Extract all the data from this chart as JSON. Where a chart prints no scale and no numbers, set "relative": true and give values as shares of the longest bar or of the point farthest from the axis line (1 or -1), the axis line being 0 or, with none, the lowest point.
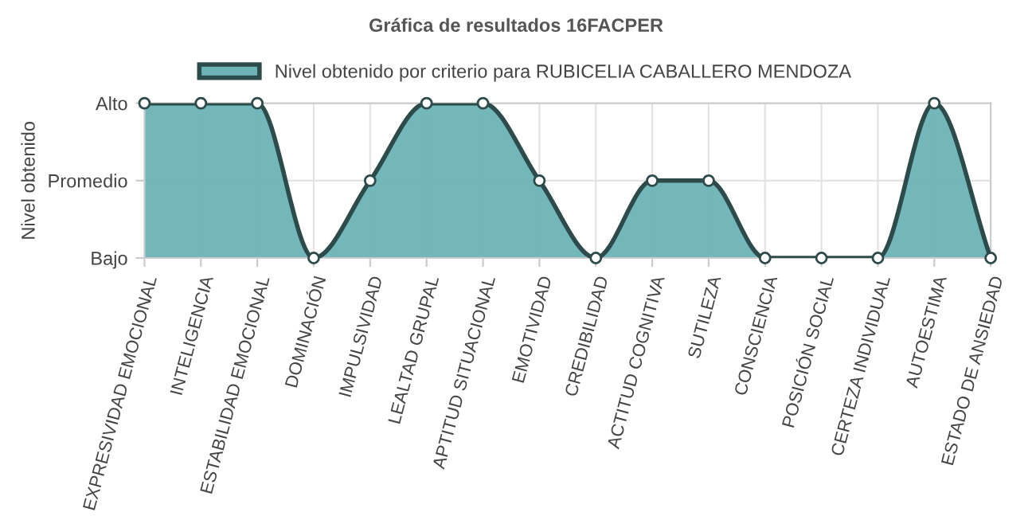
{
  "chart_data": {
    "type": "area",
    "title": "Gráfica de resultados 16FACPER",
    "ylabel": "Nivel obtenido",
    "categories": [
      "EXPRESIVIDAD EMOCIONAL",
      "INTELIGENCIA",
      "ESTABILIDAD EMOCIONAL",
      "DOMINACIÓN",
      "IMPULSIVIDAD",
      "LEALTAD GRUPAL",
      "APTITUD SITUACIONAL",
      "EMOTIVIDAD",
      "CREDIBILIDAD",
      "ACTITUD COGNITIVA",
      "SUTILEZA",
      "CONSCIENCIA",
      "POSICIÓN SOCIAL",
      "CERTEZA INDIVIDUAL",
      "AUTOESTIMA",
      "ESTADO DE ANSIEDAD"
    ],
    "series": [
      {
        "name": "Nivel obtenido por criterio para RUBICELIA CABALLERO MENDOZA",
        "color": "#6db3b6",
        "values": [
          1,
          1,
          1,
          0,
          0.5,
          1,
          1,
          0.5,
          0,
          0.5,
          0.5,
          0,
          0,
          0,
          1,
          0
        ]
      }
    ],
    "relative": true,
    "annotations": [
      "Bajo",
      "Promedio",
      "Alto"
    ],
    "grid": true,
    "legend": "top",
    "marker": "circle"
  }
}
